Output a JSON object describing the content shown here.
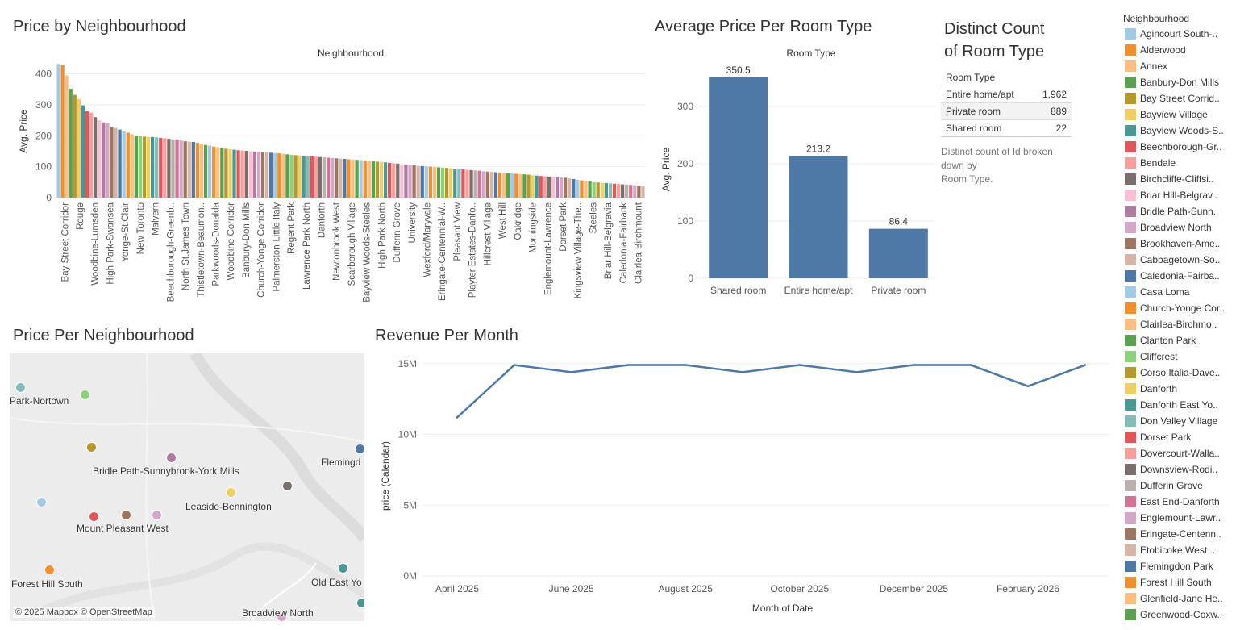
{
  "titles": {
    "price_by_neighbourhood": "Price by Neighbourhood",
    "avg_price_room_type": "Average Price Per Room Type",
    "distinct_count_line1": "Distinct Count",
    "distinct_count_line2": "of Room Type",
    "price_per_neighbourhood": "Price Per Neighbourhood",
    "revenue_per_month": "Revenue Per Month"
  },
  "chart_data": [
    {
      "type": "bar",
      "title": "Price by Neighbourhood",
      "header": "Neighbourhood",
      "ylabel": "Avg. Price",
      "ylim": [
        0,
        430
      ],
      "yticks": [
        0,
        100,
        200,
        300,
        400
      ],
      "xtick_labels": [
        "Bay Street Corridor",
        "Rouge",
        "Woodbine-Lumsden",
        "High Park-Swansea",
        "Yonge-St.Clair",
        "New Toronto",
        "Malvern",
        "Beechborough-Greenb..",
        "North St.James Town",
        "Thistletown-Beaumon..",
        "Parkwoods-Donalda",
        "Woodbine Corridor",
        "Banbury-Don Mills",
        "Church-Yonge Corridor",
        "Palmerston-Little Italy",
        "Regent Park",
        "Lawrence Park North",
        "Danforth",
        "Newtonbrook West",
        "Scarborough Village",
        "Bayview Woods-Steeles",
        "High Park North",
        "Dufferin Grove",
        "University",
        "Wexford/Maryvale",
        "Eringate-Centennial-W..",
        "Pleasant View",
        "Playter Estates-Danfo..",
        "Hillcrest Village",
        "West Hill",
        "Oakridge",
        "Morningside",
        "Englemount-Lawrence",
        "Dorset Park",
        "Kingsview Village-The..",
        "Steeles",
        "Briar Hill-Belgravia",
        "Caledonia-Fairbank",
        "Clairlea-Birchmount"
      ],
      "values": [
        432,
        428,
        395,
        352,
        332,
        318,
        298,
        280,
        275,
        260,
        250,
        243,
        240,
        228,
        225,
        220,
        215,
        210,
        205,
        200,
        198,
        197,
        196,
        196,
        195,
        193,
        192,
        190,
        188,
        188,
        185,
        182,
        181,
        180,
        177,
        173,
        170,
        168,
        165,
        163,
        160,
        158,
        157,
        155,
        153,
        152,
        151,
        150,
        149,
        148,
        147,
        146,
        145,
        144,
        143,
        142,
        140,
        138,
        137,
        136,
        135,
        134,
        133,
        132,
        131,
        130,
        129,
        128,
        127,
        126,
        125,
        124,
        123,
        122,
        121,
        120,
        119,
        117,
        116,
        115,
        114,
        112,
        111,
        110,
        108,
        107,
        106,
        105,
        103,
        102,
        101,
        100,
        99,
        98,
        97,
        96,
        95,
        93,
        92,
        91,
        90,
        89,
        88,
        87,
        85,
        84,
        83,
        82,
        81,
        80,
        79,
        78,
        77,
        76,
        75,
        74,
        72,
        71,
        70,
        69,
        68,
        67,
        66,
        65,
        64,
        62,
        60,
        58,
        56,
        54,
        52,
        50,
        49,
        48,
        47,
        46,
        45,
        44,
        43,
        42,
        41,
        40,
        39,
        38
      ]
    },
    {
      "type": "bar",
      "title": "Average Price Per Room Type",
      "header": "Room Type",
      "ylabel": "Avg. Price",
      "categories": [
        "Shared room",
        "Entire home/apt",
        "Private room"
      ],
      "values": [
        350.5,
        213.2,
        86.4
      ],
      "data_labels": [
        "350.5",
        "213.2",
        "86.4"
      ],
      "ylim": [
        0,
        380
      ],
      "yticks": [
        0,
        100,
        200,
        300
      ],
      "color": "#4e79a7"
    },
    {
      "type": "line",
      "title": "Revenue Per Month",
      "xlabel": "Month of Date",
      "ylabel": "price (Calendar)",
      "x": [
        "April 2025",
        "May 2025",
        "June 2025",
        "July 2025",
        "August 2025",
        "September 2025",
        "October 2025",
        "November 2025",
        "December 2025",
        "January 2026",
        "February 2026",
        "March 2026"
      ],
      "xtick_labels": [
        "April 2025",
        "June 2025",
        "August 2025",
        "October 2025",
        "December 2025",
        "February 2026"
      ],
      "values": [
        11.2,
        14.9,
        14.4,
        14.9,
        14.9,
        14.4,
        14.9,
        14.4,
        14.9,
        14.9,
        13.4,
        14.9
      ],
      "units": "M",
      "ylim": [
        0,
        15.5
      ],
      "ytick_labels": [
        "0M",
        "5M",
        "10M",
        "15M"
      ],
      "color": "#4e79a7"
    },
    {
      "type": "table",
      "title": "Distinct Count of Room Type",
      "header": "Room Type",
      "rows": [
        {
          "label": "Entire home/apt",
          "value": "1,962"
        },
        {
          "label": "Private room",
          "value": "889"
        },
        {
          "label": "Shared room",
          "value": "22"
        }
      ],
      "caption_line1": "Distinct count of Id broken down by",
      "caption_line2": "Room Type."
    }
  ],
  "map": {
    "labels": [
      "Park-Nortown",
      "Bridle Path-Sunnybrook-York Mills",
      "Flemingd",
      "Leaside-Bennington",
      "Mount Pleasant West",
      "Forest Hill South",
      "Old East Yo",
      "Broadview North"
    ],
    "attribution": "© 2025 Mapbox © OpenStreetMap"
  },
  "legend": {
    "title": "Neighbourhood",
    "items": [
      {
        "label": "Agincourt South-..",
        "color": "#a0cbe8"
      },
      {
        "label": "Alderwood",
        "color": "#f28e2b"
      },
      {
        "label": "Annex",
        "color": "#ffbe7d"
      },
      {
        "label": "Banbury-Don Mills",
        "color": "#59a14f"
      },
      {
        "label": "Bay Street Corrid..",
        "color": "#b6992d"
      },
      {
        "label": "Bayview Village",
        "color": "#f1ce63"
      },
      {
        "label": "Bayview Woods-S..",
        "color": "#499894"
      },
      {
        "label": "Beechborough-Gr..",
        "color": "#e15759"
      },
      {
        "label": "Bendale",
        "color": "#ff9d9a"
      },
      {
        "label": "Birchcliffe-Cliffsi..",
        "color": "#79706e"
      },
      {
        "label": "Briar Hill-Belgrav..",
        "color": "#fabfd2"
      },
      {
        "label": "Bridle Path-Sunn..",
        "color": "#b07aa1"
      },
      {
        "label": "Broadview North",
        "color": "#d4a6c8"
      },
      {
        "label": "Brookhaven-Ame..",
        "color": "#9d7660"
      },
      {
        "label": "Cabbagetown-So..",
        "color": "#d7b5a6"
      },
      {
        "label": "Caledonia-Fairba..",
        "color": "#4e79a7"
      },
      {
        "label": "Casa Loma",
        "color": "#a0cbe8"
      },
      {
        "label": "Church-Yonge Cor..",
        "color": "#f28e2b"
      },
      {
        "label": "Clairlea-Birchmo..",
        "color": "#ffbe7d"
      },
      {
        "label": "Clanton Park",
        "color": "#59a14f"
      },
      {
        "label": "Cliffcrest",
        "color": "#8cd17d"
      },
      {
        "label": "Corso Italia-Dave..",
        "color": "#b6992d"
      },
      {
        "label": "Danforth",
        "color": "#f1ce63"
      },
      {
        "label": "Danforth East Yo..",
        "color": "#499894"
      },
      {
        "label": "Don Valley Village",
        "color": "#86bcb6"
      },
      {
        "label": "Dorset Park",
        "color": "#e15759"
      },
      {
        "label": "Dovercourt-Walla..",
        "color": "#ff9d9a"
      },
      {
        "label": "Downsview-Rodi..",
        "color": "#79706e"
      },
      {
        "label": "Dufferin Grove",
        "color": "#bab0ac"
      },
      {
        "label": "East End-Danforth",
        "color": "#d37295"
      },
      {
        "label": "Englemount-Lawr..",
        "color": "#d4a6c8"
      },
      {
        "label": "Eringate-Centenn..",
        "color": "#9d7660"
      },
      {
        "label": "Etobicoke West ..",
        "color": "#d7b5a6"
      },
      {
        "label": "Flemingdon Park",
        "color": "#4e79a7"
      },
      {
        "label": "Forest Hill South",
        "color": "#f28e2b"
      },
      {
        "label": "Glenfield-Jane He..",
        "color": "#ffbe7d"
      },
      {
        "label": "Greenwood-Coxw..",
        "color": "#59a14f"
      }
    ]
  }
}
